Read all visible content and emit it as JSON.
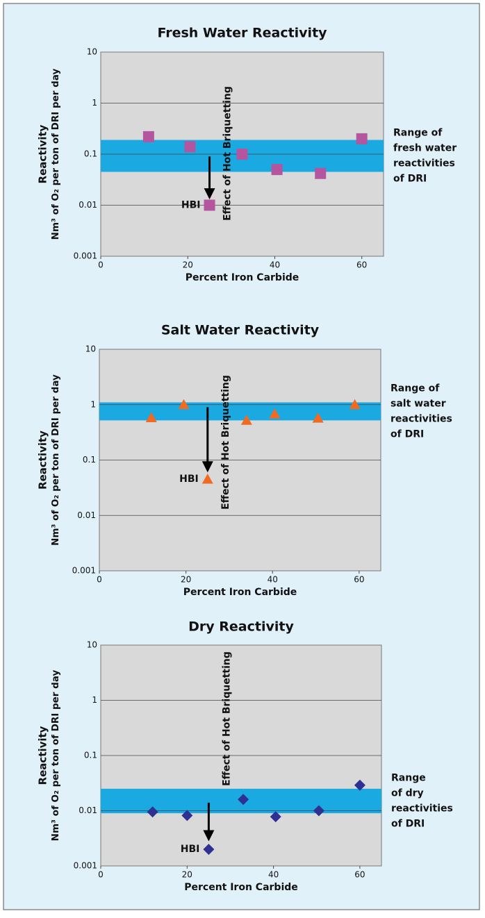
{
  "chart_data": [
    {
      "type": "scatter",
      "title": "Fresh Water Reactivity",
      "x_label": "Percent Iron Carbide",
      "y_label": "Reactivity",
      "y_label_2": "Nm³ of O₂ per ton of DRI per day",
      "xlim": [
        0,
        65
      ],
      "xticks": [
        0,
        20,
        40,
        60
      ],
      "ylim": [
        0.001,
        10
      ],
      "yticks": [
        0.001,
        0.01,
        0.1,
        1,
        10
      ],
      "log_y": true,
      "grid": true,
      "series": [
        {
          "marker": "square",
          "color": "#b4559f",
          "x": [
            11,
            20.5,
            32.5,
            40.5,
            50.5,
            60
          ],
          "values": [
            0.22,
            0.14,
            0.1,
            0.05,
            0.042,
            0.2
          ]
        }
      ],
      "hbi": {
        "label": "HBI",
        "x": 25,
        "value": 0.01
      },
      "arrow": {
        "label": "Effect of Hot Briquetting",
        "x": 25,
        "from": 0.09,
        "to": 0.013
      },
      "band": {
        "color": "#1ba9e1",
        "low": 0.045,
        "high": 0.19,
        "label": [
          "Range of",
          "fresh water",
          "reactivities",
          "of DRI"
        ]
      }
    },
    {
      "type": "scatter",
      "title": "Salt Water Reactivity",
      "x_label": "Percent Iron Carbide",
      "y_label": "Reactivity",
      "y_label_2": "Nm³ of O₂ per ton of DRI per day",
      "xlim": [
        0,
        65
      ],
      "xticks": [
        0,
        20,
        40,
        60
      ],
      "ylim": [
        0.001,
        10
      ],
      "yticks": [
        0.001,
        0.01,
        0.1,
        1,
        10
      ],
      "log_y": true,
      "grid": true,
      "series": [
        {
          "marker": "triangle",
          "color": "#f26a21",
          "x": [
            12,
            19.5,
            34,
            40.5,
            50.5,
            59
          ],
          "values": [
            0.58,
            1.0,
            0.52,
            0.68,
            0.57,
            1.0
          ]
        }
      ],
      "hbi": {
        "label": "HBI",
        "x": 25,
        "value": 0.045
      },
      "arrow": {
        "label": "Effect of Hot Briquetting",
        "x": 25,
        "from": 0.9,
        "to": 0.06
      },
      "band": {
        "color": "#1ba9e1",
        "low": 0.52,
        "high": 1.1,
        "label": [
          "Range of",
          "salt water",
          "reactivities",
          "of DRI"
        ]
      }
    },
    {
      "type": "scatter",
      "title": "Dry Reactivity",
      "x_label": "Percent Iron Carbide",
      "y_label": "Reactivity",
      "y_label_2": "Nm³ of O₂ per ton of DRI per day",
      "xlim": [
        0,
        65
      ],
      "xticks": [
        0,
        20,
        40,
        60
      ],
      "ylim": [
        0.001,
        10
      ],
      "yticks": [
        0.001,
        0.01,
        0.1,
        1,
        10
      ],
      "log_y": true,
      "grid": true,
      "series": [
        {
          "marker": "diamond",
          "color": "#2e3192",
          "x": [
            12,
            20,
            33,
            40.5,
            50.5,
            60
          ],
          "values": [
            0.0095,
            0.0082,
            0.016,
            0.0078,
            0.01,
            0.029
          ]
        }
      ],
      "hbi": {
        "label": "HBI",
        "x": 25,
        "value": 0.002
      },
      "arrow": {
        "label": "Effect of Hot Briquetting",
        "x": 25,
        "from": 0.014,
        "to": 0.0028
      },
      "band": {
        "color": "#1ba9e1",
        "low": 0.009,
        "high": 0.025,
        "label": [
          "Range",
          "of dry",
          "reactivities",
          "of DRI"
        ]
      }
    }
  ]
}
